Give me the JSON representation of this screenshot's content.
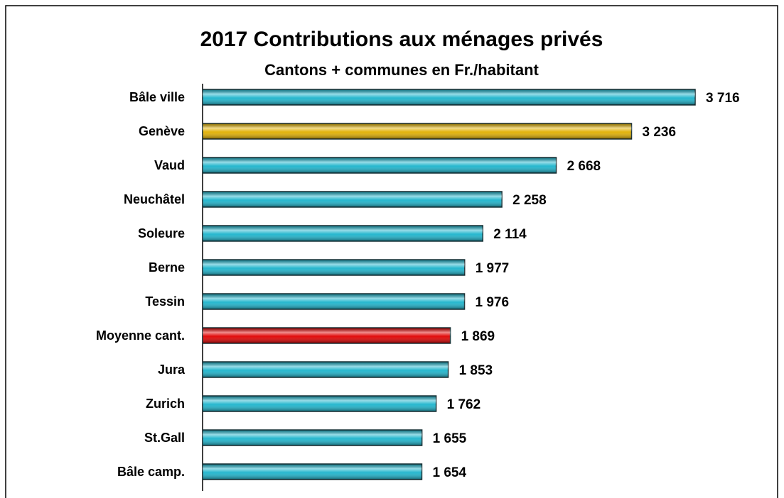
{
  "chart_data": {
    "type": "hbar",
    "title": "2017  Contributions aux ménages privés",
    "subtitle": "Cantons + communes en Fr./habitant",
    "categories": [
      "Bâle ville",
      "Genève",
      "Vaud",
      "Neuchâtel",
      "Soleure",
      "Berne",
      "Tessin",
      "Moyenne cant.",
      "Jura",
      "Zurich",
      "St.Gall",
      "Bâle  camp."
    ],
    "values": [
      3716,
      3236,
      2668,
      2258,
      2114,
      1977,
      1976,
      1869,
      1853,
      1762,
      1655,
      1654
    ],
    "value_labels": [
      "3 716",
      "3 236",
      "2 668",
      "2 258",
      "2 114",
      "1 977",
      "1 976",
      "1 869",
      "1 853",
      "1 762",
      "1 655",
      "1 654"
    ],
    "colors": [
      "#1cb4cc",
      "#e0b000",
      "#1cb4cc",
      "#1cb4cc",
      "#1cb4cc",
      "#1cb4cc",
      "#1cb4cc",
      "#e00000",
      "#1cb4cc",
      "#1cb4cc",
      "#1cb4cc",
      "#1cb4cc"
    ],
    "xlim": [
      0,
      4000
    ]
  }
}
